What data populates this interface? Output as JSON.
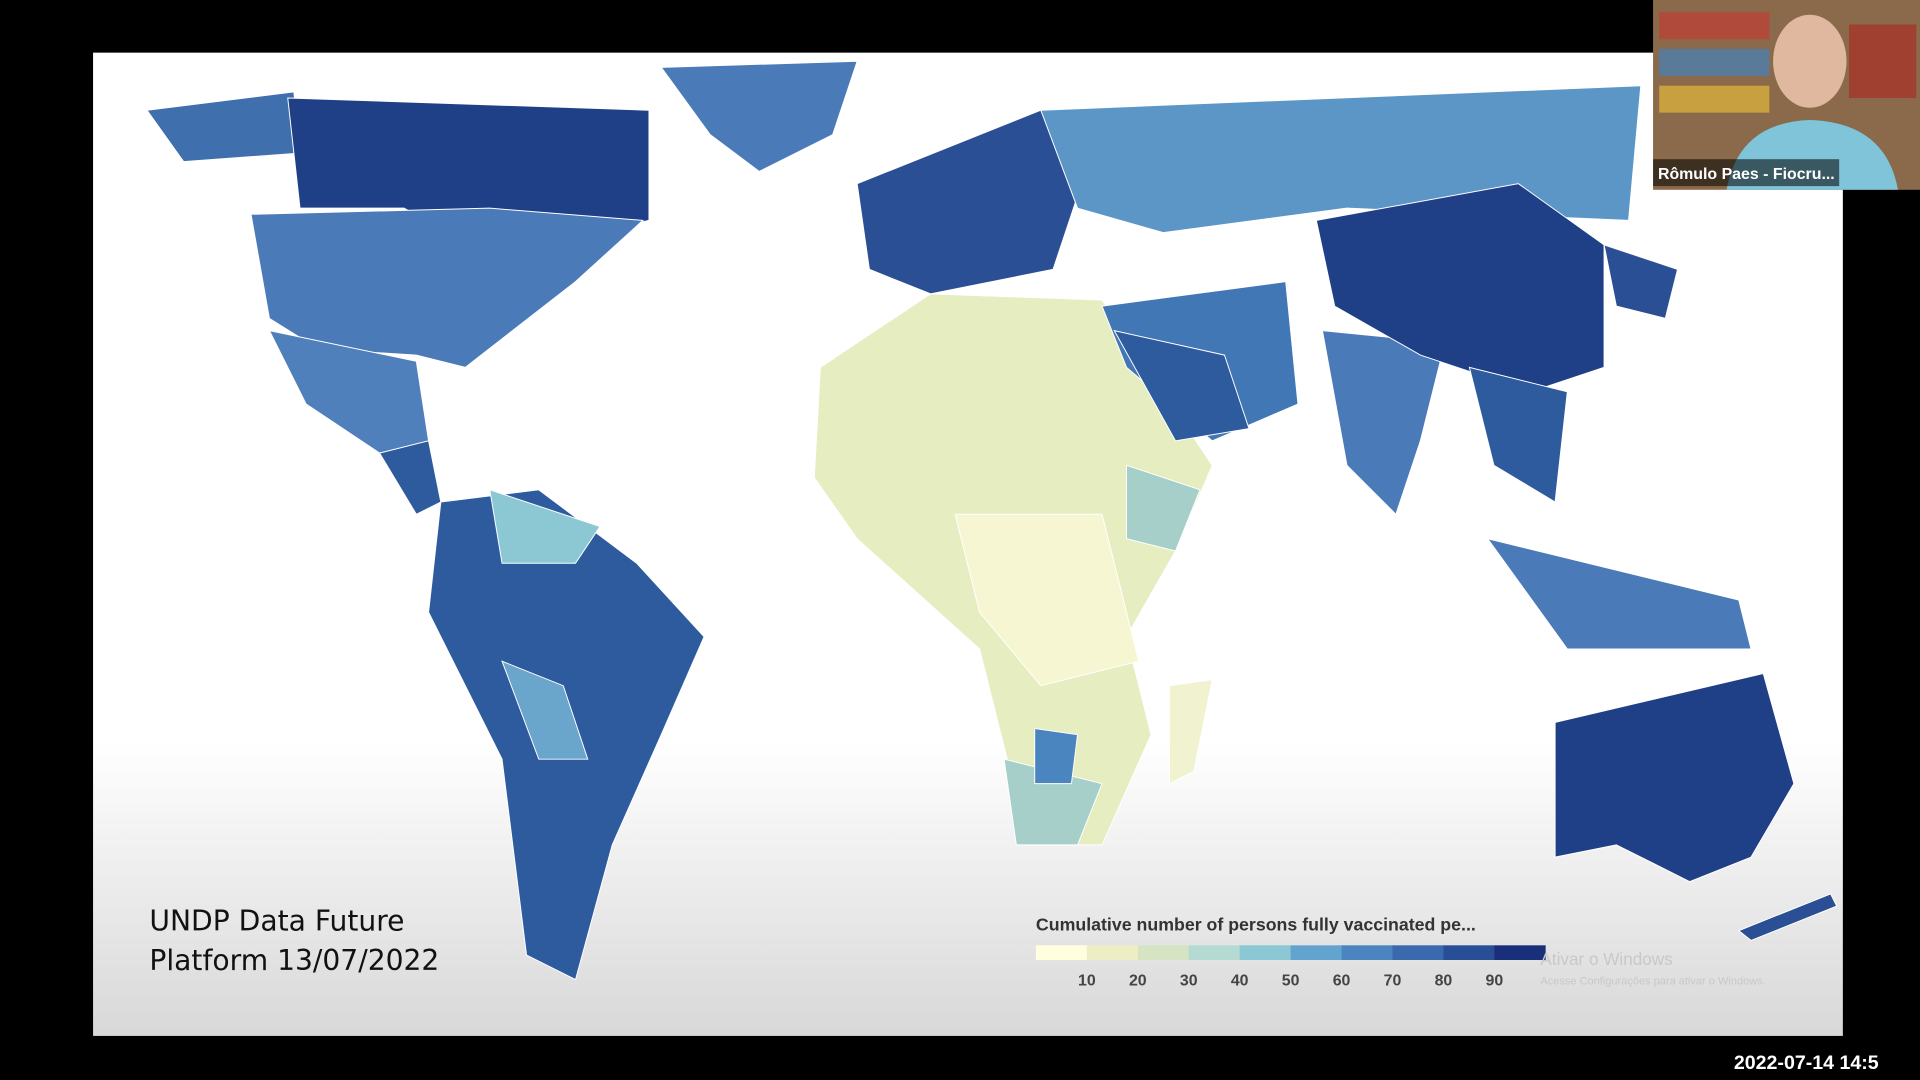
{
  "video_call": {
    "participant_name": "Rômulo Paes - Fiocru...",
    "timestamp": "2022-07-14 14:5"
  },
  "slide": {
    "caption": [
      "UNDP Data Future",
      "Platform 13/07/2022"
    ],
    "legend": {
      "title": "Cumulative number of persons fully vaccinated pe...",
      "ticks": [
        10,
        20,
        30,
        40,
        50,
        60,
        70,
        80,
        90
      ],
      "colors": [
        "#ffffe0",
        "#eeeec4",
        "#d6e4c4",
        "#b4dad2",
        "#8cc8d4",
        "#62a4cf",
        "#4b85bf",
        "#3a6aad",
        "#284f96",
        "#1a2f7a"
      ]
    }
  },
  "watermark": {
    "title": "Ativar o Windows",
    "subtitle": "Acesse Configurações para ativar o Windows."
  }
}
